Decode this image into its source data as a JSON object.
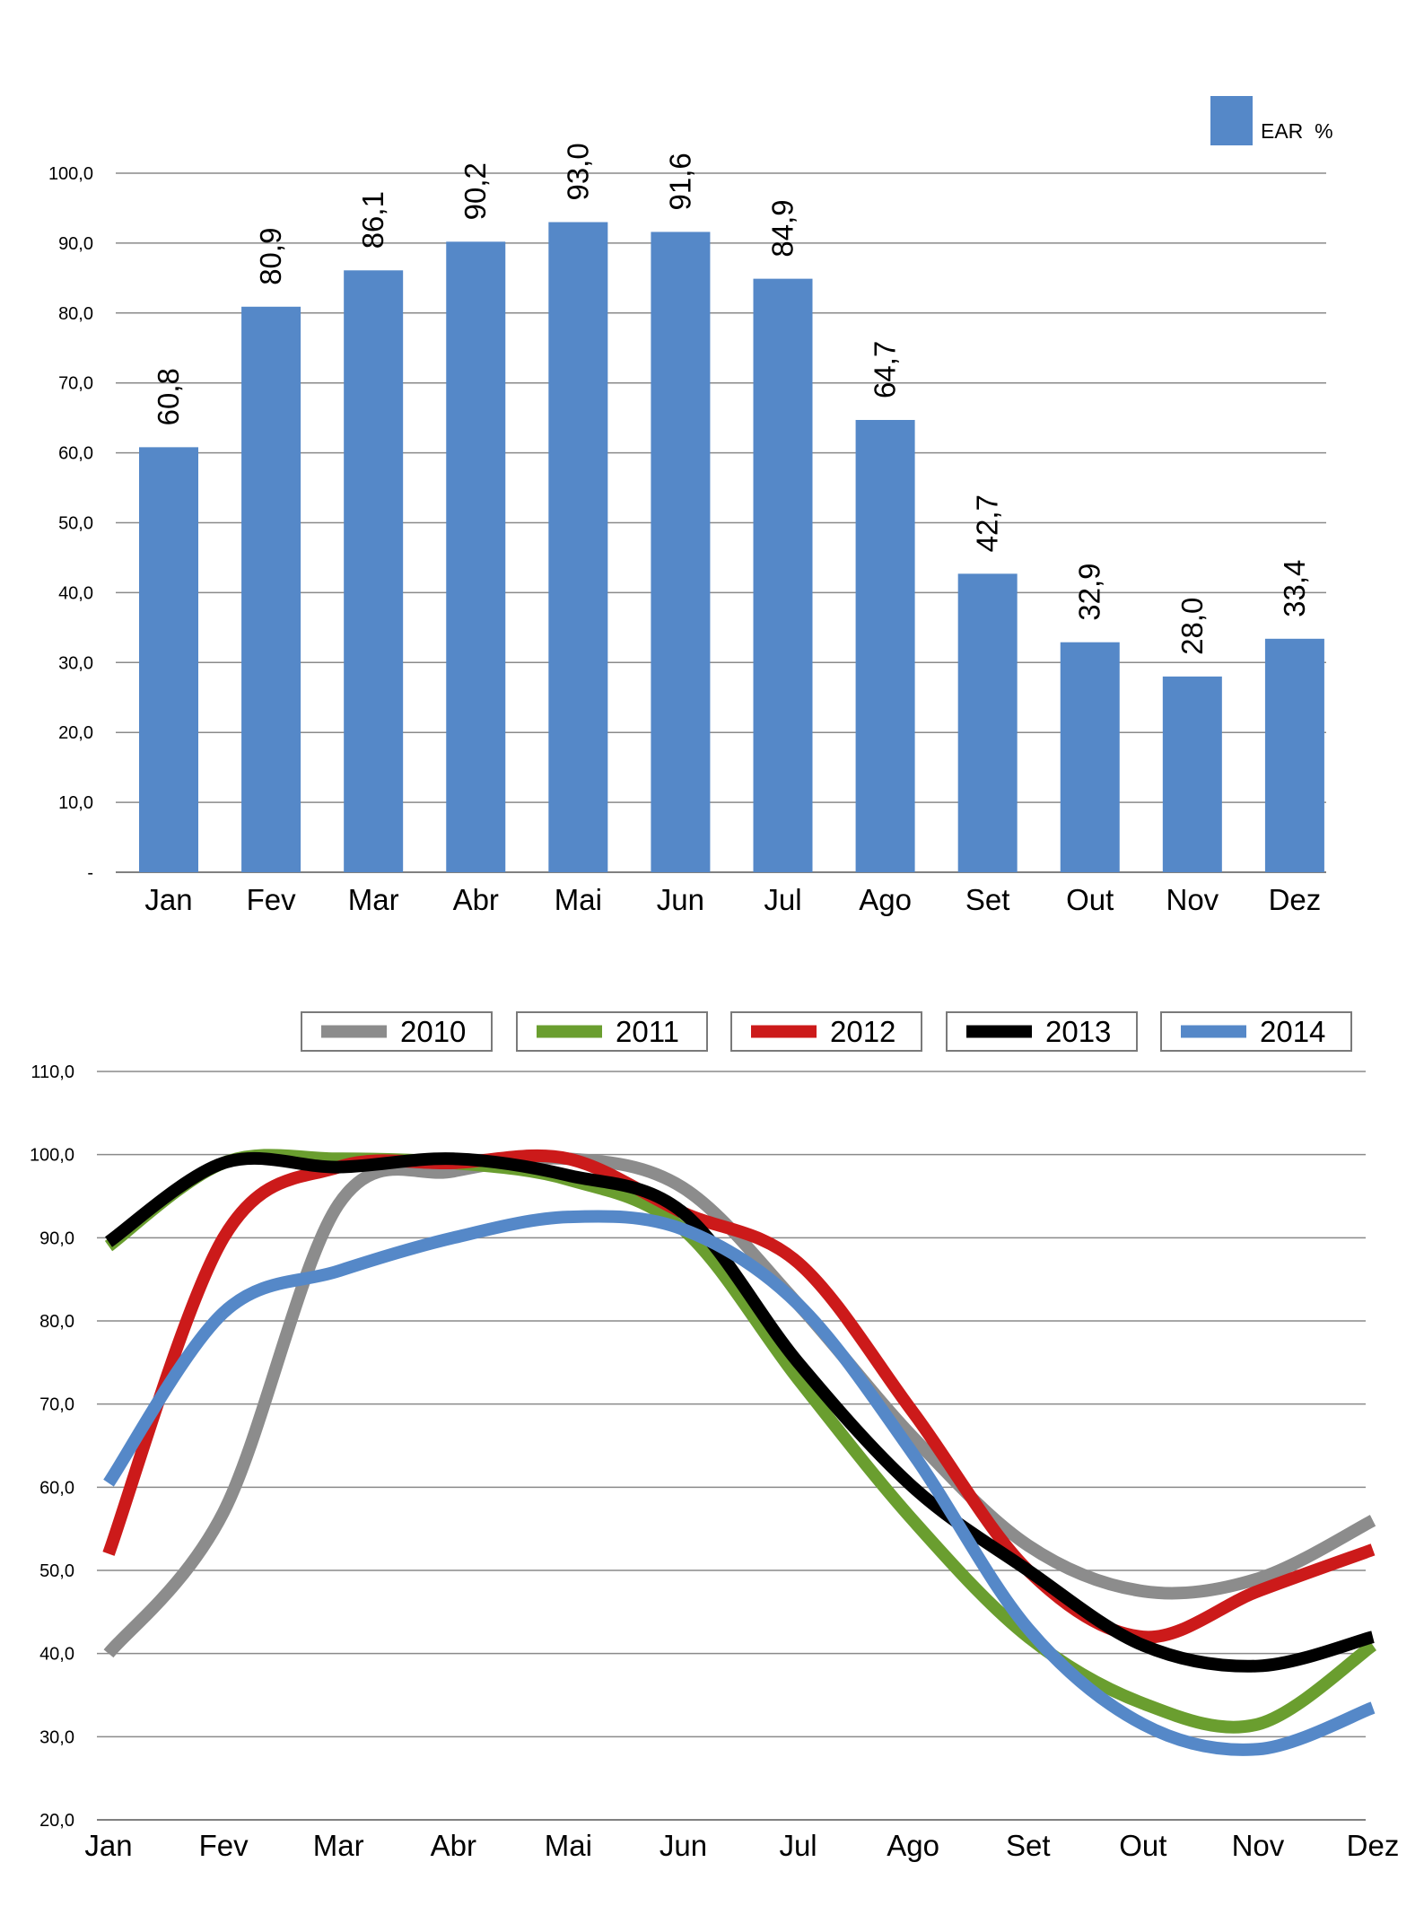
{
  "chart_data": [
    {
      "type": "bar",
      "categories": [
        "Jan",
        "Fev",
        "Mar",
        "Abr",
        "Mai",
        "Jun",
        "Jul",
        "Ago",
        "Set",
        "Out",
        "Nov",
        "Dez"
      ],
      "series": [
        {
          "name": "EAR  %",
          "values": [
            60.8,
            80.9,
            86.1,
            90.2,
            93.0,
            91.6,
            84.9,
            64.7,
            42.7,
            32.9,
            28.0,
            33.4
          ],
          "color": "#5588c8"
        }
      ],
      "data_labels": [
        "60,8",
        "80,9",
        "86,1",
        "90,2",
        "93,0",
        "91,6",
        "84,9",
        "64,7",
        "42,7",
        "32,9",
        "28,0",
        "33,4"
      ],
      "yticks": [
        0,
        10,
        20,
        30,
        40,
        50,
        60,
        70,
        80,
        90,
        100
      ],
      "ytick_labels": [
        "-",
        "10,0",
        "20,0",
        "30,0",
        "40,0",
        "50,0",
        "60,0",
        "70,0",
        "80,0",
        "90,0",
        "100,0"
      ],
      "ylim": [
        0,
        100
      ],
      "grid": true,
      "legend": "top-right",
      "title": "",
      "xlabel": "",
      "ylabel": ""
    },
    {
      "type": "line",
      "categories": [
        "Jan",
        "Fev",
        "Mar",
        "Abr",
        "Mai",
        "Jun",
        "Jul",
        "Ago",
        "Set",
        "Out",
        "Nov",
        "Dez"
      ],
      "series": [
        {
          "name": "2010",
          "color": "#8c8c8c",
          "values": [
            40,
            57,
            94,
            98,
            99.5,
            96,
            82,
            66,
            53,
            47.5,
            49,
            56
          ]
        },
        {
          "name": "2011",
          "color": "#6a9e2f",
          "values": [
            89,
            99,
            99.5,
            99,
            97,
            91,
            73,
            56,
            42,
            34,
            31.5,
            41
          ]
        },
        {
          "name": "2012",
          "color": "#cc1a1a",
          "values": [
            52,
            90,
            98.5,
            99,
            99.5,
            93,
            87,
            69,
            50,
            42,
            47.5,
            52.5
          ]
        },
        {
          "name": "2013",
          "color": "#000000",
          "values": [
            89.5,
            99,
            98.5,
            99.5,
            97.5,
            93,
            75,
            60,
            50,
            41,
            38.5,
            42
          ]
        },
        {
          "name": "2014",
          "color": "#5588c8",
          "values": [
            60.5,
            81,
            86,
            90,
            92.5,
            91,
            82,
            64,
            43,
            31.5,
            28.5,
            33.5
          ]
        }
      ],
      "yticks": [
        20,
        30,
        40,
        50,
        60,
        70,
        80,
        90,
        100,
        110
      ],
      "ytick_labels": [
        "20,0",
        "30,0",
        "40,0",
        "50,0",
        "60,0",
        "70,0",
        "80,0",
        "90,0",
        "100,0",
        "110,0"
      ],
      "ylim": [
        20,
        110
      ],
      "grid": true,
      "legend": "top",
      "title": "",
      "xlabel": "",
      "ylabel": ""
    }
  ]
}
